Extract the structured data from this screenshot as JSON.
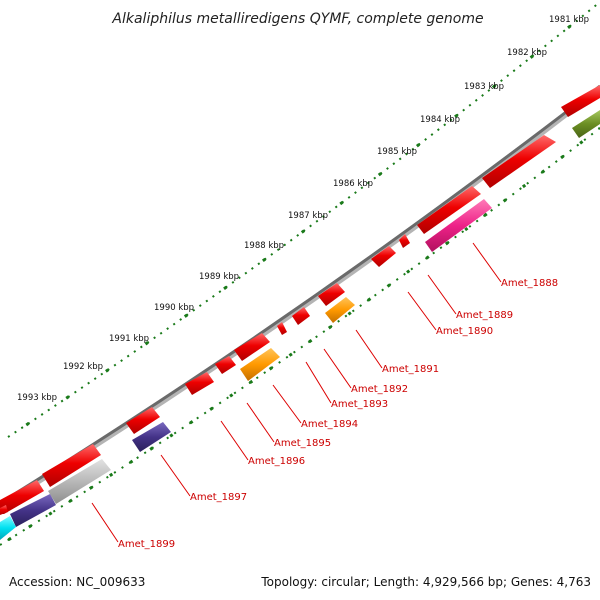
{
  "title": "Alkaliphilus metalliredigens QYMF, complete genome",
  "footer": {
    "accession": "Accession: NC_009633",
    "summary": "Topology: circular; Length: 4,929,566 bp; Genes: 4,763"
  },
  "kbp_scale": [
    "1981 kbp",
    "1982 kbp",
    "1983 kbp",
    "1984 kbp",
    "1985 kbp",
    "1986 kbp",
    "1987 kbp",
    "1988 kbp",
    "1989 kbp",
    "1990 kbp",
    "1991 kbp",
    "1992 kbp",
    "1993 kbp"
  ],
  "gene_labels": [
    "Amet_1888",
    "Amet_1889",
    "Amet_1890",
    "Amet_1891",
    "Amet_1892",
    "Amet_1893",
    "Amet_1894",
    "Amet_1895",
    "Amet_1896",
    "Amet_1897",
    "Amet_1899"
  ],
  "colors": {
    "backbone": "#777777",
    "scale_dots": "#1a7a1a",
    "gene_red": "#ee0000",
    "gene_magenta": "#ee2288",
    "gene_orange": "#ff9900",
    "gene_purple": "#443388",
    "gene_gray": "#b8b8b8",
    "gene_cyan": "#00e0f0",
    "gene_olive": "#6b8e23",
    "label_red": "#cc0000"
  }
}
